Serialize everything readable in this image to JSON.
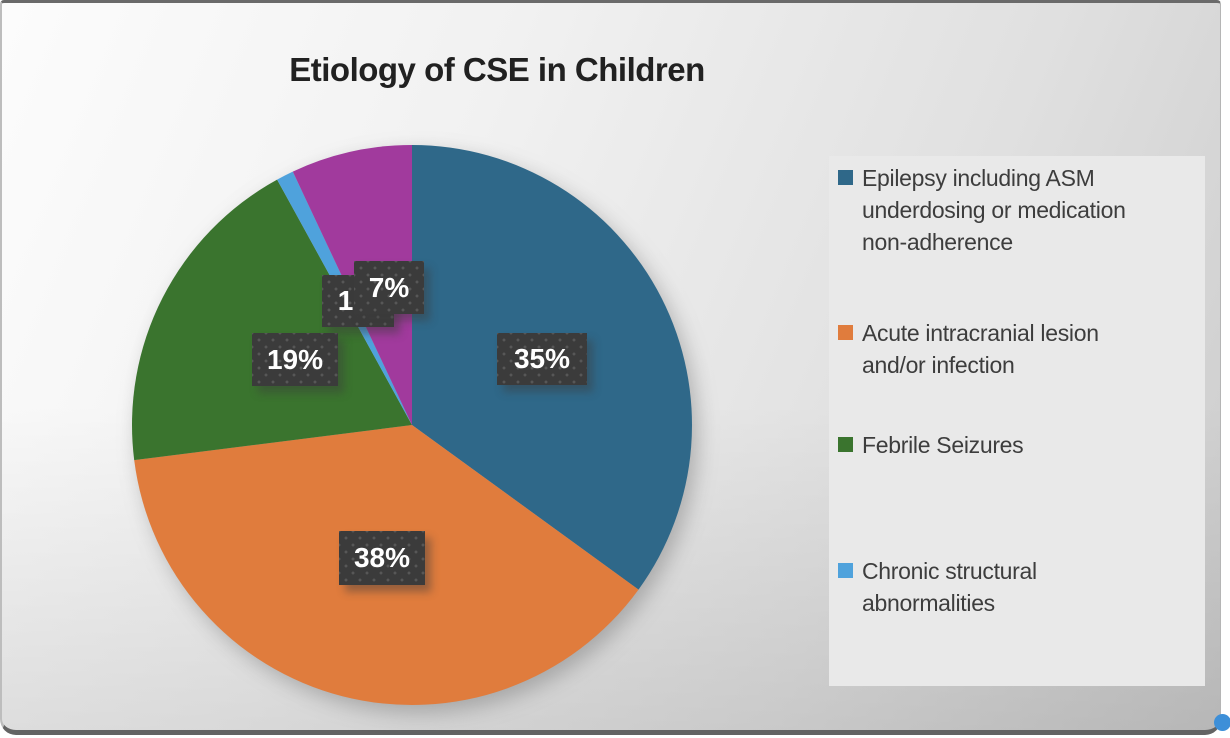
{
  "title": "Etiology of CSE in Children",
  "chart_data": {
    "type": "pie",
    "title": "Etiology of CSE in Children",
    "start_angle_deg": 0,
    "direction": "clockwise",
    "legend_position": "right",
    "slices": [
      {
        "name": "Epilepsy including ASM underdosing or medication non-adherence",
        "value": 35,
        "label": "35%",
        "color": "#2F6889",
        "legend_visible": true
      },
      {
        "name": "Acute intracranial lesion and/or infection",
        "value": 38,
        "label": "38%",
        "color": "#E07C3D",
        "legend_visible": true
      },
      {
        "name": "Febrile Seizures",
        "value": 19,
        "label": "19%",
        "color": "#3A742E",
        "legend_visible": true
      },
      {
        "name": "Chronic structural abnormalities",
        "value": 1,
        "label": "1%",
        "color": "#4FA2DC",
        "legend_visible": true
      },
      {
        "name": "",
        "value": 7,
        "label": "7%",
        "color": "#A13A9D",
        "legend_visible": false
      }
    ]
  },
  "legend": {
    "items": [
      {
        "color": "#2F6889",
        "lines": [
          "Epilepsy including ASM",
          "underdosing or medication",
          "non-adherence"
        ]
      },
      {
        "color": "#E07C3D",
        "lines": [
          "Acute intracranial lesion",
          "and/or infection"
        ]
      },
      {
        "color": "#3A742E",
        "lines": [
          "Febrile Seizures"
        ]
      },
      {
        "color": "#4FA2DC",
        "lines": [
          "Chronic structural",
          "abnormalities"
        ]
      }
    ]
  }
}
